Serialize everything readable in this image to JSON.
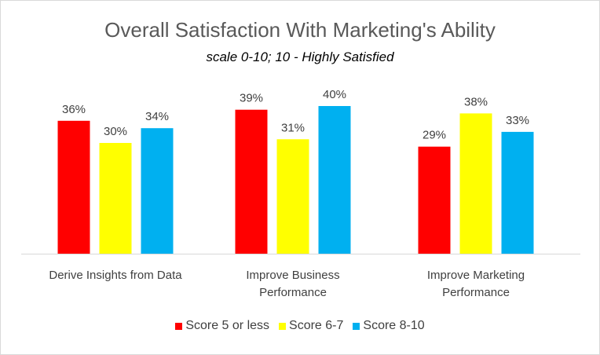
{
  "chart_data": {
    "type": "bar",
    "title": "Overall Satisfaction With Marketing's Ability",
    "subtitle": "scale 0-10; 10 - Highly Satisfied",
    "categories": [
      [
        "Derive Insights from Data"
      ],
      [
        "Improve Business",
        "Performance"
      ],
      [
        "Improve Marketing",
        "Performance"
      ]
    ],
    "series": [
      {
        "name": "Score 5 or less",
        "color": "#ff0000",
        "values": [
          36,
          39,
          29
        ]
      },
      {
        "name": "Score 6-7",
        "color": "#ffff00",
        "values": [
          30,
          31,
          38
        ]
      },
      {
        "name": "Score 8-10",
        "color": "#00b0f0",
        "values": [
          34,
          40,
          33
        ]
      }
    ],
    "value_suffix": "%",
    "ylim": [
      0,
      44
    ],
    "grid": false,
    "legend_position": "bottom"
  }
}
